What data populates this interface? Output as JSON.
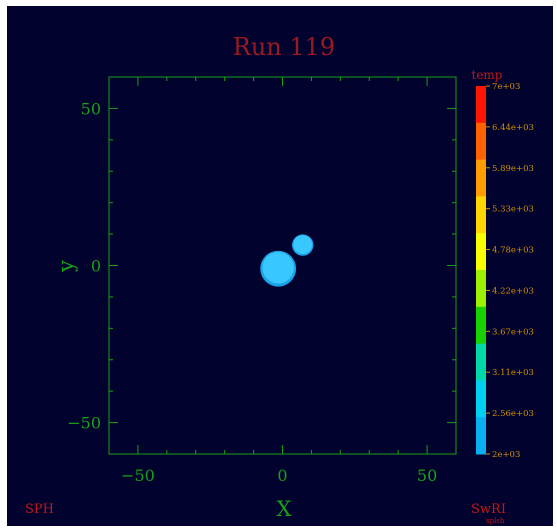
{
  "colors": {
    "background": "#02022e",
    "axis": "#18a018",
    "title": "#9a1a22",
    "footer": "#c01818",
    "particle_fill": "#38c8ff",
    "particle_edge": "#1aa2e8",
    "colorbar_label": "#d09000"
  },
  "chart_data": {
    "type": "scatter",
    "title": "Run  119",
    "xlabel": "X",
    "ylabel": "y",
    "xlim": [
      -60,
      60
    ],
    "ylim": [
      -60,
      60
    ],
    "xticks": [
      -50,
      0,
      50
    ],
    "xtick_labels": [
      "−50",
      "0",
      "50"
    ],
    "yticks": [
      -50,
      0,
      50
    ],
    "ytick_labels": [
      "−50",
      "0",
      "50"
    ],
    "grid": false,
    "bodies": [
      {
        "x": -1.5,
        "y": -1.0,
        "radius": 6.2,
        "temp": 2300
      },
      {
        "x": 7.0,
        "y": 6.5,
        "radius": 3.7,
        "temp": 2450
      }
    ],
    "colorbar": {
      "label": "temp",
      "min": 2000,
      "max": 7000,
      "tick_labels": [
        "7e+03",
        "6.44e+03",
        "5.89e+03",
        "5.33e+03",
        "4.78e+03",
        "4.22e+03",
        "3.67e+03",
        "3.11e+03",
        "2.56e+03",
        "2e+03"
      ],
      "colors": [
        "#ff1400",
        "#ff6000",
        "#ff9c00",
        "#ffd400",
        "#f8ff00",
        "#9cf200",
        "#18d200",
        "#00d8a8",
        "#00d0f0",
        "#08b0f0"
      ]
    },
    "footer_left": "SPH",
    "footer_right": "SwRI",
    "footer_right_small": "splsh"
  }
}
